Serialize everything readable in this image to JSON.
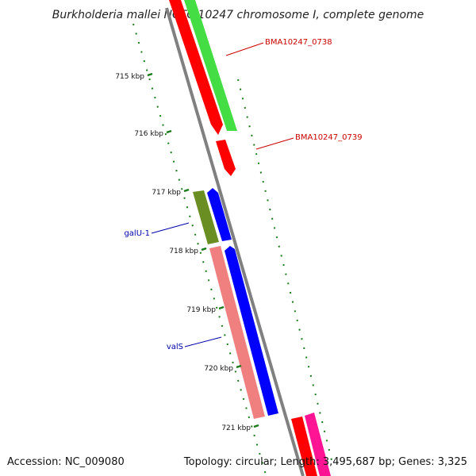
{
  "title": "Burkholderia mallei NCTC 10247 chromosome I, complete genome",
  "footer": {
    "accession": "Accession: NC_009080",
    "topology": "Topology: circular; Length: 3,495,687 bp; Genes: 3,325"
  },
  "ticks": [
    "715 kbp",
    "716 kbp",
    "717 kbp",
    "718 kbp",
    "719 kbp",
    "720 kbp",
    "721 kbp"
  ],
  "gene_labels": [
    {
      "text": "BMA10247_0738",
      "color": "#cc0000"
    },
    {
      "text": "BMA10247_0739",
      "color": "#cc0000"
    },
    {
      "text": "galU-1",
      "color": "#0000aa"
    },
    {
      "text": "valS",
      "color": "#0000aa"
    }
  ],
  "colors": {
    "backbone": "#808080",
    "tick": "#1a7a1a",
    "gene_red": "#ff0000",
    "gene_green": "#44dd44",
    "gene_olive": "#6b8e23",
    "gene_blue": "#0000ff",
    "gene_pink": "#f08080",
    "gene_magenta": "#ff1493"
  }
}
